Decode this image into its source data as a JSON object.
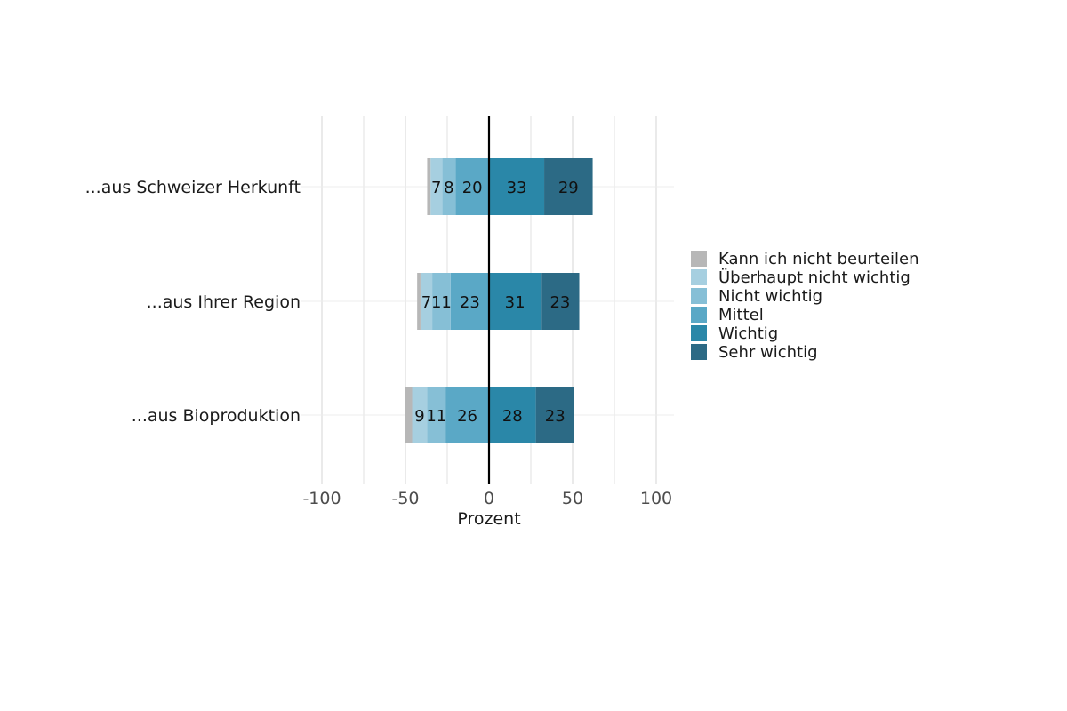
{
  "chart_data": {
    "type": "bar",
    "orientation": "horizontal",
    "stacking": "diverging",
    "xlabel": "Prozent",
    "ylabel": "",
    "xlim": [
      -110,
      110
    ],
    "xticks": [
      -100,
      -50,
      0,
      50,
      100
    ],
    "categories": [
      "...aus Schweizer Herkunft",
      "...aus Ihrer Region",
      "...aus Bioproduktion"
    ],
    "series": [
      {
        "name": "Kann ich nicht beurteilen",
        "color": "#b7b7b7",
        "side": "negative",
        "values": [
          2,
          2,
          4
        ]
      },
      {
        "name": "Überhaupt nicht wichtig",
        "color": "#a6cfe0",
        "side": "negative",
        "values": [
          7,
          7,
          9
        ]
      },
      {
        "name": "Nicht wichtig",
        "color": "#86bfd6",
        "side": "negative",
        "values": [
          8,
          11,
          11
        ]
      },
      {
        "name": "Mittel",
        "color": "#5aa8c6",
        "side": "negative",
        "values": [
          20,
          23,
          26
        ]
      },
      {
        "name": "Wichtig",
        "color": "#2a87a8",
        "side": "positive",
        "values": [
          33,
          31,
          28
        ]
      },
      {
        "name": "Sehr wichtig",
        "color": "#2c6a85",
        "side": "positive",
        "values": [
          29,
          23,
          23
        ]
      }
    ],
    "data_labels": [
      [
        "",
        "7",
        "8",
        "20",
        "33",
        "29"
      ],
      [
        "",
        "7",
        "11",
        "23",
        "31",
        "23"
      ],
      [
        "",
        "9",
        "11",
        "26",
        "28",
        "23"
      ]
    ],
    "grid": true,
    "legend_position": "right"
  }
}
